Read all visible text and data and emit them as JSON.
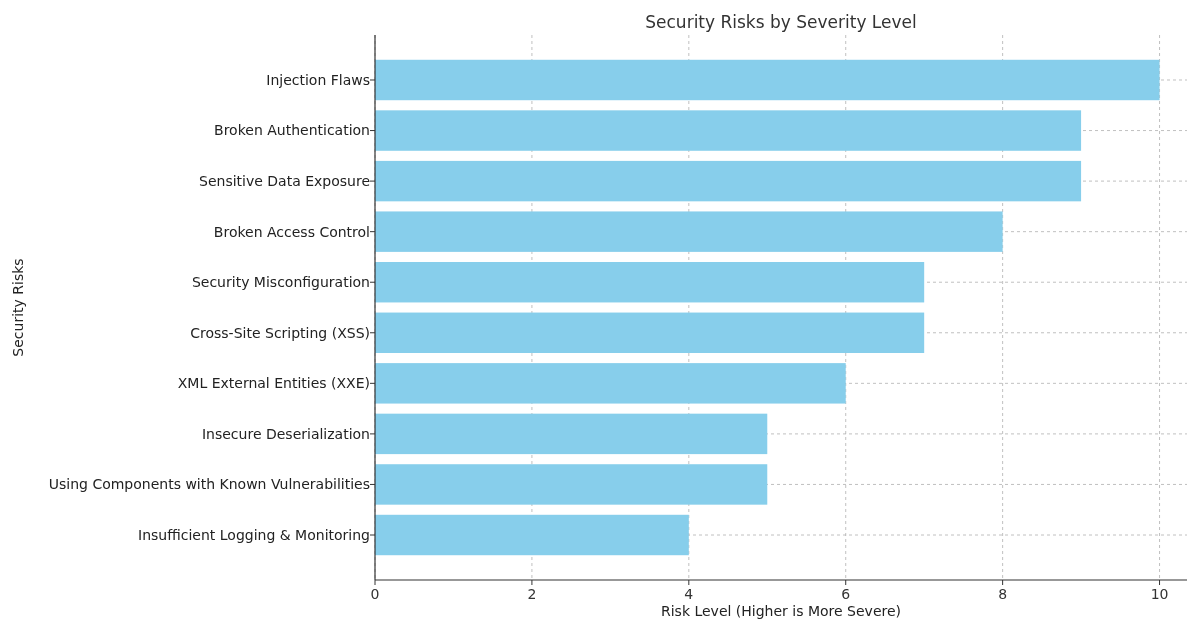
{
  "chart_data": {
    "type": "bar",
    "orientation": "horizontal",
    "title": "Security Risks by Severity Level",
    "xlabel": "Risk Level (Higher is More Severe)",
    "ylabel": "Security Risks",
    "categories": [
      "Injection Flaws",
      "Broken Authentication",
      "Sensitive Data Exposure",
      "Broken Access Control",
      "Security Misconfiguration",
      "Cross-Site Scripting (XSS)",
      "XML External Entities (XXE)",
      "Insecure Deserialization",
      "Using Components with Known Vulnerabilities",
      "Insufficient Logging & Monitoring"
    ],
    "values": [
      10,
      9,
      9,
      8,
      7,
      7,
      6,
      5,
      5,
      4
    ],
    "color": "#87ceeb",
    "xlim": [
      0,
      10.35
    ],
    "xticks": [
      0,
      2,
      4,
      6,
      8,
      10
    ],
    "grid": true
  }
}
